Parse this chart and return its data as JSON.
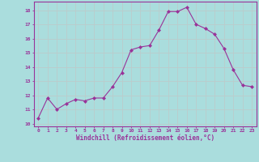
{
  "x": [
    0,
    1,
    2,
    3,
    4,
    5,
    6,
    7,
    8,
    9,
    10,
    11,
    12,
    13,
    14,
    15,
    16,
    17,
    18,
    19,
    20,
    21,
    22,
    23
  ],
  "y": [
    10.4,
    11.8,
    11.0,
    11.4,
    11.7,
    11.6,
    11.8,
    11.8,
    12.6,
    13.6,
    15.2,
    15.4,
    15.5,
    16.6,
    17.9,
    17.9,
    18.2,
    17.0,
    16.7,
    16.3,
    15.3,
    13.8,
    12.7,
    12.6
  ],
  "xlabel": "Windchill (Refroidissement éolien,°C)",
  "xlim": [
    -0.5,
    23.5
  ],
  "ylim": [
    9.8,
    18.6
  ],
  "yticks": [
    10,
    11,
    12,
    13,
    14,
    15,
    16,
    17,
    18
  ],
  "xticks": [
    0,
    1,
    2,
    3,
    4,
    5,
    6,
    7,
    8,
    9,
    10,
    11,
    12,
    13,
    14,
    15,
    16,
    17,
    18,
    19,
    20,
    21,
    22,
    23
  ],
  "line_color": "#993399",
  "marker": "D",
  "marker_size": 2.0,
  "bg_color": "#aadddd",
  "grid_color": "#bbcccc",
  "tick_color": "#993399",
  "label_color": "#993399",
  "font_family": "monospace"
}
